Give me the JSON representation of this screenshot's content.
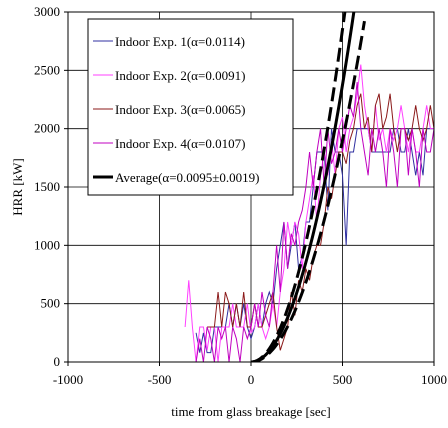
{
  "chart_data": {
    "type": "line",
    "xlabel": "time from glass breakage [sec]",
    "ylabel": "HRR [kW]",
    "xlim": [
      -1000,
      1000
    ],
    "ylim": [
      0,
      3000
    ],
    "x_ticks": [
      -1000,
      -500,
      0,
      500,
      1000
    ],
    "y_ticks": [
      0,
      500,
      1000,
      1500,
      2000,
      2500,
      3000
    ],
    "x_tick_labels": [
      "-1000",
      "-500",
      "0",
      "500",
      "1000"
    ],
    "y_tick_labels": [
      "0",
      "500",
      "1000",
      "1500",
      "2000",
      "2500",
      "3000"
    ],
    "grid": true,
    "legend_position": "upper-left",
    "series": [
      {
        "name": "Indoor Exp. 1(α=0.0114)",
        "color": "#2f2fa0",
        "style": "step",
        "x": [
          -300,
          -280,
          -260,
          -240,
          -220,
          -200,
          -180,
          -160,
          -140,
          -120,
          -100,
          -80,
          -60,
          -40,
          -20,
          0,
          20,
          40,
          60,
          80,
          100,
          120,
          140,
          160,
          180,
          200,
          220,
          240,
          260,
          280,
          300,
          320,
          340,
          360,
          380,
          400,
          420,
          440,
          460,
          480,
          500,
          520,
          540,
          560,
          580,
          600,
          620,
          640,
          660,
          680,
          700,
          720,
          740,
          760,
          780,
          800,
          820,
          840,
          860,
          880,
          900,
          920,
          940,
          960,
          980,
          1000
        ],
        "y": [
          250,
          80,
          250,
          80,
          80,
          300,
          300,
          300,
          300,
          500,
          300,
          500,
          300,
          500,
          300,
          200,
          300,
          500,
          300,
          500,
          600,
          500,
          800,
          1000,
          1200,
          800,
          1000,
          1200,
          800,
          900,
          1200,
          1200,
          1500,
          1800,
          1800,
          1800,
          1300,
          2000,
          1800,
          1800,
          1600,
          1000,
          1800,
          1800,
          2000,
          2000,
          2000,
          2000,
          1800,
          1800,
          1800,
          1800,
          1800,
          1800,
          2000,
          2000,
          1800,
          1800,
          2000,
          1800,
          1600,
          1800,
          1600,
          2000,
          2000,
          2000
        ]
      },
      {
        "name": "Indoor Exp. 2(α=0.0091)",
        "color": "#ff40ff",
        "style": "step",
        "x": [
          -360,
          -340,
          -320,
          -300,
          -280,
          -260,
          -240,
          -220,
          -200,
          -180,
          -160,
          -140,
          -120,
          -100,
          -80,
          -60,
          -40,
          -20,
          0,
          20,
          40,
          60,
          80,
          100,
          120,
          140,
          160,
          180,
          200,
          220,
          240,
          260,
          280,
          300,
          320,
          340,
          360,
          380,
          400,
          420,
          440,
          460,
          480,
          500,
          520,
          540,
          560,
          580,
          600,
          620,
          640,
          660,
          680,
          700,
          720,
          740,
          760,
          780,
          800,
          820,
          840,
          860,
          880,
          900,
          920,
          940,
          960,
          980,
          1000
        ],
        "y": [
          300,
          700,
          300,
          0,
          300,
          300,
          100,
          300,
          300,
          0,
          300,
          300,
          300,
          500,
          300,
          300,
          300,
          500,
          250,
          300,
          500,
          300,
          200,
          300,
          500,
          300,
          600,
          800,
          1200,
          1000,
          1200,
          1100,
          800,
          1200,
          1400,
          1600,
          1200,
          1600,
          1800,
          1600,
          1900,
          1600,
          2000,
          2100,
          1800,
          2000,
          2100,
          2300,
          2550,
          2200,
          2000,
          1800,
          2200,
          1900,
          2000,
          1800,
          2000,
          1900,
          2000,
          2200,
          2000,
          1800,
          2000,
          1800,
          1800,
          2000,
          2200,
          2000,
          2000
        ]
      },
      {
        "name": "Indoor Exp. 3(α=0.0065)",
        "color": "#8b1a1a",
        "style": "step",
        "x": [
          -240,
          -220,
          -200,
          -180,
          -160,
          -140,
          -120,
          -100,
          -80,
          -60,
          -40,
          -20,
          0,
          20,
          40,
          60,
          80,
          100,
          120,
          140,
          160,
          180,
          200,
          220,
          240,
          260,
          280,
          300,
          320,
          340,
          360,
          380,
          400,
          420,
          440,
          460,
          480,
          500,
          520,
          540,
          560,
          580,
          600,
          620,
          640,
          660,
          680,
          700,
          720,
          740,
          760,
          780,
          800,
          820,
          840,
          860,
          880,
          900,
          920,
          940,
          960,
          980,
          1000
        ],
        "y": [
          300,
          300,
          300,
          600,
          300,
          600,
          500,
          300,
          500,
          300,
          600,
          300,
          300,
          500,
          300,
          300,
          400,
          500,
          600,
          300,
          100,
          200,
          300,
          600,
          400,
          700,
          600,
          800,
          700,
          900,
          1000,
          1000,
          1200,
          1500,
          1400,
          1600,
          1800,
          1800,
          1700,
          1900,
          2000,
          2200,
          2300,
          2000,
          2100,
          1800,
          2200,
          2300,
          2000,
          2100,
          2300,
          2000,
          1800,
          2000,
          2000,
          1900,
          2000,
          2200,
          2000,
          1900,
          2000,
          2200,
          2000
        ]
      },
      {
        "name": "Indoor Exp. 4(α=0.0107)",
        "color": "#c000c0",
        "style": "step",
        "x": [
          -300,
          -280,
          -260,
          -240,
          -220,
          -200,
          -180,
          -160,
          -140,
          -120,
          -100,
          -80,
          -60,
          -40,
          -20,
          0,
          20,
          40,
          60,
          80,
          100,
          120,
          140,
          160,
          180,
          200,
          220,
          240,
          260,
          280,
          300,
          320,
          340,
          360,
          380,
          400,
          420,
          440,
          460,
          480,
          500,
          520,
          540,
          560,
          580,
          600,
          620,
          640,
          660,
          680,
          700,
          720,
          740,
          760,
          780,
          800,
          820,
          840,
          860,
          880,
          900,
          920,
          940,
          960,
          980,
          1000
        ],
        "y": [
          0,
          200,
          0,
          300,
          200,
          0,
          300,
          200,
          300,
          0,
          300,
          200,
          0,
          300,
          200,
          300,
          500,
          300,
          600,
          400,
          300,
          600,
          1000,
          600,
          1200,
          800,
          1100,
          1000,
          1200,
          1300,
          1500,
          1800,
          1500,
          1800,
          2000,
          1500,
          2000,
          1700,
          1800,
          2000,
          1800,
          2000,
          2200,
          2100,
          2400,
          2000,
          1800,
          1600,
          2000,
          1800,
          2000,
          1800,
          1500,
          2000,
          1800,
          1500,
          2000,
          2000,
          1600,
          2000,
          1800,
          1500,
          2000,
          1800,
          1800,
          2000
        ]
      },
      {
        "name": "Average(α=0.0095±0.0019)",
        "color": "#000000",
        "style": "curve",
        "alpha": 0.0095,
        "alpha_low": 0.0076,
        "alpha_high": 0.0114,
        "x": [
          0,
          50,
          100,
          150,
          200,
          250,
          300,
          350,
          400,
          450,
          500,
          550,
          600
        ],
        "y": [
          0,
          24,
          95,
          214,
          380,
          594,
          855,
          1164,
          1520,
          1924,
          2375,
          2874,
          3420
        ]
      }
    ],
    "legend": [
      "Indoor Exp. 1(α=0.0114)",
      "Indoor Exp. 2(α=0.0091)",
      "Indoor Exp. 3(α=0.0065)",
      "Indoor Exp. 4(α=0.0107)",
      "Average(α=0.0095±0.0019)"
    ]
  }
}
